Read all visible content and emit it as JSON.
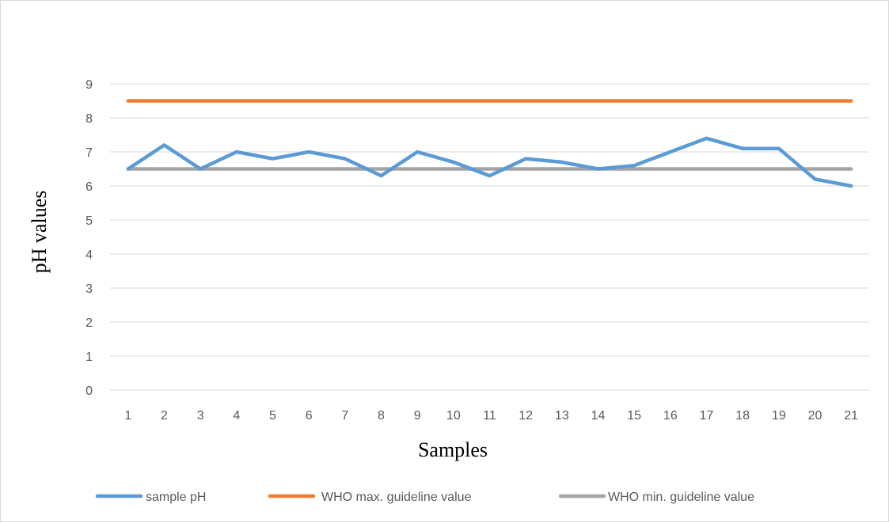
{
  "chart_data": {
    "type": "line",
    "title": "",
    "xlabel": "Samples",
    "ylabel": "pH values",
    "categories": [
      "1",
      "2",
      "3",
      "4",
      "5",
      "6",
      "7",
      "8",
      "9",
      "10",
      "11",
      "12",
      "13",
      "14",
      "15",
      "16",
      "17",
      "18",
      "19",
      "20",
      "21"
    ],
    "ylim": [
      0,
      9
    ],
    "yticks": [
      0,
      1,
      2,
      3,
      4,
      5,
      6,
      7,
      8,
      9
    ],
    "grid": true,
    "legend_position": "bottom",
    "series": [
      {
        "name": "sample pH",
        "color": "#5b9bd5",
        "values": [
          6.5,
          7.2,
          6.5,
          7.0,
          6.8,
          7.0,
          6.8,
          6.3,
          7.0,
          6.7,
          6.3,
          6.8,
          6.7,
          6.5,
          6.6,
          7.0,
          7.4,
          7.1,
          7.1,
          6.2,
          6.0
        ]
      },
      {
        "name": "WHO max. guideline value",
        "color": "#ed7d31",
        "values": [
          8.5,
          8.5,
          8.5,
          8.5,
          8.5,
          8.5,
          8.5,
          8.5,
          8.5,
          8.5,
          8.5,
          8.5,
          8.5,
          8.5,
          8.5,
          8.5,
          8.5,
          8.5,
          8.5,
          8.5,
          8.5
        ]
      },
      {
        "name": "WHO min. guideline value",
        "color": "#a5a5a5",
        "values": [
          6.5,
          6.5,
          6.5,
          6.5,
          6.5,
          6.5,
          6.5,
          6.5,
          6.5,
          6.5,
          6.5,
          6.5,
          6.5,
          6.5,
          6.5,
          6.5,
          6.5,
          6.5,
          6.5,
          6.5,
          6.5
        ]
      }
    ]
  }
}
